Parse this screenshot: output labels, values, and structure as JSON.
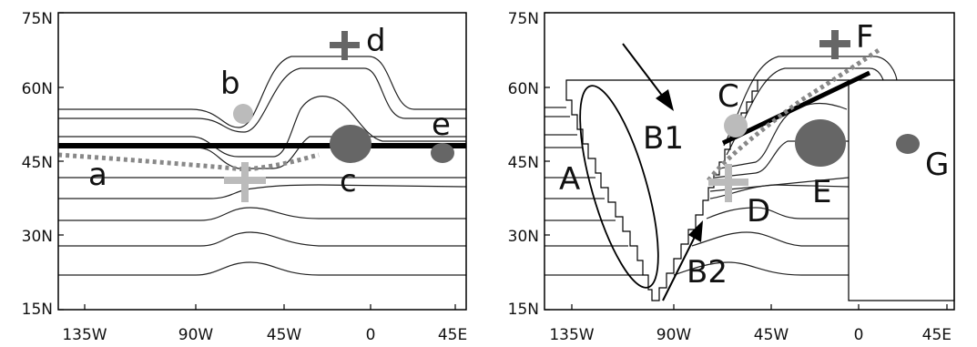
{
  "panels": [
    {
      "id": "left",
      "y_ticks": [
        "75N",
        "60N",
        "45N",
        "30N",
        "15N"
      ],
      "x_ticks": [
        "135W",
        "90W",
        "45W",
        "0",
        "45E"
      ],
      "labels": {
        "a": "a",
        "b": "b",
        "c": "c",
        "d": "d",
        "e": "e"
      }
    },
    {
      "id": "right",
      "y_ticks": [
        "75N",
        "60N",
        "45N",
        "30N",
        "15N"
      ],
      "x_ticks": [
        "135W",
        "90W",
        "45W",
        "0",
        "45E"
      ],
      "labels": {
        "A": "A",
        "B1": "B1",
        "B2": "B2",
        "C": "C",
        "D": "D",
        "E": "E",
        "F": "F",
        "G": "G"
      }
    }
  ],
  "colors": {
    "frame": "#000000",
    "contour": "#222222",
    "dark_marker": "#666666",
    "light_marker": "#bbbbbb",
    "dotted_line": "#888888"
  }
}
